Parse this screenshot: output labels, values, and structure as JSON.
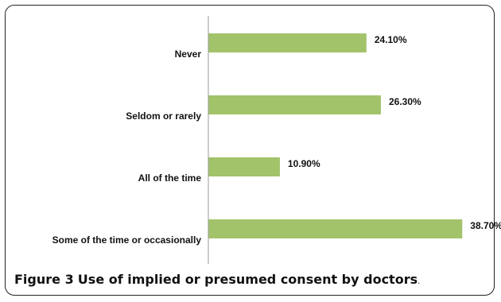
{
  "chart_data": {
    "type": "bar",
    "orientation": "horizontal",
    "categories": [
      "Never",
      "Seldom or rarely",
      "All of the time",
      "Some of the time or occasionally"
    ],
    "values": [
      24.1,
      26.3,
      10.9,
      38.7
    ],
    "value_labels": [
      "24.10%",
      "26.30%",
      "10.90%",
      "38.70%"
    ],
    "xlim": [
      0,
      40
    ],
    "bar_color": "#a2c36a",
    "axis_color": "#999999",
    "grid": false
  },
  "caption": {
    "label": "Figure 3",
    "text": "Use of implied or presumed consent by doctors",
    "end": "."
  }
}
